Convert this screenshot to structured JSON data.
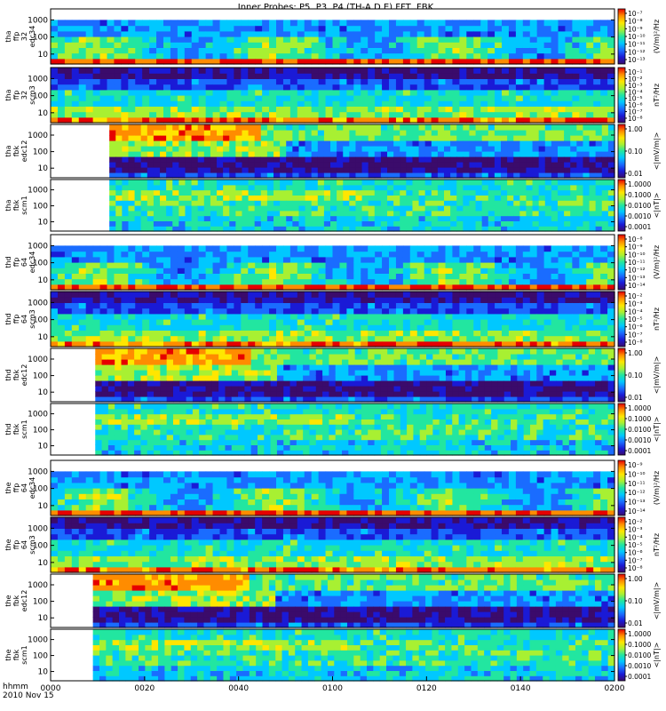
{
  "chart_data": {
    "type": "heatmap",
    "title": "Inner Probes: P5, P3, P4 (TH-A,D,E) FFT, FBK",
    "time_axis": {
      "label_line1": "hhmm",
      "label_line2": "2010 Nov 15",
      "ticks": [
        "0000",
        "0020",
        "0040",
        "0100",
        "0120",
        "0140",
        "0200"
      ],
      "range_minutes": [
        0,
        120
      ]
    },
    "panels": [
      {
        "ylabel": [
          "tha",
          "ffp",
          "32",
          "edc34"
        ],
        "yticks": [
          "10",
          "100",
          "1000"
        ],
        "cbar_label": "(V/m)²/Hz",
        "cbar_ticks": [
          "10⁻⁷",
          "10⁻⁸",
          "10⁻⁹",
          "10⁻¹⁰",
          "10⁻¹¹",
          "10⁻¹²",
          "10⁻¹³"
        ],
        "data_start_minute": 0,
        "kind": "ffp_e"
      },
      {
        "ylabel": [
          "tha",
          "ffp",
          "32",
          "scm3"
        ],
        "yticks": [
          "10",
          "100",
          "1000"
        ],
        "cbar_label": "nT²/Hz",
        "cbar_ticks": [
          "10⁻¹",
          "10⁻²",
          "10⁻³",
          "10⁻⁴",
          "10⁻⁵",
          "10⁻⁶",
          "10⁻⁷",
          "10⁻⁸"
        ],
        "data_start_minute": 0,
        "kind": "ffp_b"
      },
      {
        "ylabel": [
          "tha",
          "fbk",
          "edc12"
        ],
        "yticks": [
          "10",
          "100",
          "1000"
        ],
        "cbar_label": "<|mV/m|>",
        "cbar_ticks": [
          "1.00",
          "0.10",
          "0.01"
        ],
        "data_start_minute": 12.5,
        "kind": "fbk_e"
      },
      {
        "ylabel": [
          "tha",
          "fbk",
          "scm1"
        ],
        "yticks": [
          "10",
          "100",
          "1000"
        ],
        "cbar_label": "<|nT|>",
        "cbar_ticks": [
          "1.0000",
          "0.1000",
          "0.0100",
          "0.0010",
          "0.0001"
        ],
        "data_start_minute": 12.5,
        "kind": "fbk_b"
      },
      {
        "ylabel": [
          "thd",
          "ffp",
          "64",
          "edc34"
        ],
        "yticks": [
          "10",
          "100",
          "1000"
        ],
        "cbar_label": "(V/m)²/Hz",
        "cbar_ticks": [
          "10⁻⁸",
          "10⁻⁹",
          "10⁻¹⁰",
          "10⁻¹¹",
          "10⁻¹²",
          "10⁻¹³",
          "10⁻¹⁴"
        ],
        "data_start_minute": 0,
        "kind": "ffp_e"
      },
      {
        "ylabel": [
          "thd",
          "ffp",
          "64",
          "scm3"
        ],
        "yticks": [
          "10",
          "100",
          "1000"
        ],
        "cbar_label": "nT²/Hz",
        "cbar_ticks": [
          "10⁻²",
          "10⁻³",
          "10⁻⁴",
          "10⁻⁵",
          "10⁻⁶",
          "10⁻⁷",
          "10⁻⁸"
        ],
        "data_start_minute": 0,
        "kind": "ffp_b"
      },
      {
        "ylabel": [
          "thd",
          "fbk",
          "edc12"
        ],
        "yticks": [
          "10",
          "100",
          "1000"
        ],
        "cbar_label": "<|mV/m|>",
        "cbar_ticks": [
          "1.00",
          "0.10",
          "0.01"
        ],
        "data_start_minute": 9.5,
        "kind": "fbk_e"
      },
      {
        "ylabel": [
          "thd",
          "fbk",
          "scm1"
        ],
        "yticks": [
          "10",
          "100",
          "1000"
        ],
        "cbar_label": "<|nT|>",
        "cbar_ticks": [
          "1.0000",
          "0.1000",
          "0.0100",
          "0.0010",
          "0.0001"
        ],
        "data_start_minute": 9.5,
        "kind": "fbk_b"
      },
      {
        "ylabel": [
          "the",
          "ffp",
          "64",
          "edc34"
        ],
        "yticks": [
          "10",
          "100",
          "1000"
        ],
        "cbar_label": "(V/m)²/Hz",
        "cbar_ticks": [
          "10⁻⁹",
          "10⁻¹⁰",
          "10⁻¹¹",
          "10⁻¹²",
          "10⁻¹³",
          "10⁻¹⁴"
        ],
        "data_start_minute": 0,
        "kind": "ffp_e"
      },
      {
        "ylabel": [
          "the",
          "ffp",
          "64",
          "scm3"
        ],
        "yticks": [
          "10",
          "100",
          "1000"
        ],
        "cbar_label": "nT²/Hz",
        "cbar_ticks": [
          "10⁻²",
          "10⁻³",
          "10⁻⁴",
          "10⁻⁵",
          "10⁻⁶",
          "10⁻⁷",
          "10⁻⁸"
        ],
        "data_start_minute": 0,
        "kind": "ffp_b"
      },
      {
        "ylabel": [
          "the",
          "fbk",
          "edc12"
        ],
        "yticks": [
          "10",
          "100",
          "1000"
        ],
        "cbar_label": "<|mV/m|>",
        "cbar_ticks": [
          "1.00",
          "0.10",
          "0.01"
        ],
        "data_start_minute": 9,
        "kind": "fbk_e"
      },
      {
        "ylabel": [
          "the",
          "fbk",
          "scm1"
        ],
        "yticks": [
          "10",
          "100",
          "1000"
        ],
        "cbar_label": "<|nT|>",
        "cbar_ticks": [
          "1.0000",
          "0.1000",
          "0.0100",
          "0.0010",
          "0.0001"
        ],
        "data_start_minute": 9,
        "kind": "fbk_b"
      }
    ],
    "yscale": "log",
    "colormap": [
      "#ffffff",
      "#3b0b6b",
      "#1a1ad6",
      "#1a6cff",
      "#00c8ff",
      "#22e6a0",
      "#a8f032",
      "#ffe600",
      "#ff8c00",
      "#e60000"
    ]
  }
}
